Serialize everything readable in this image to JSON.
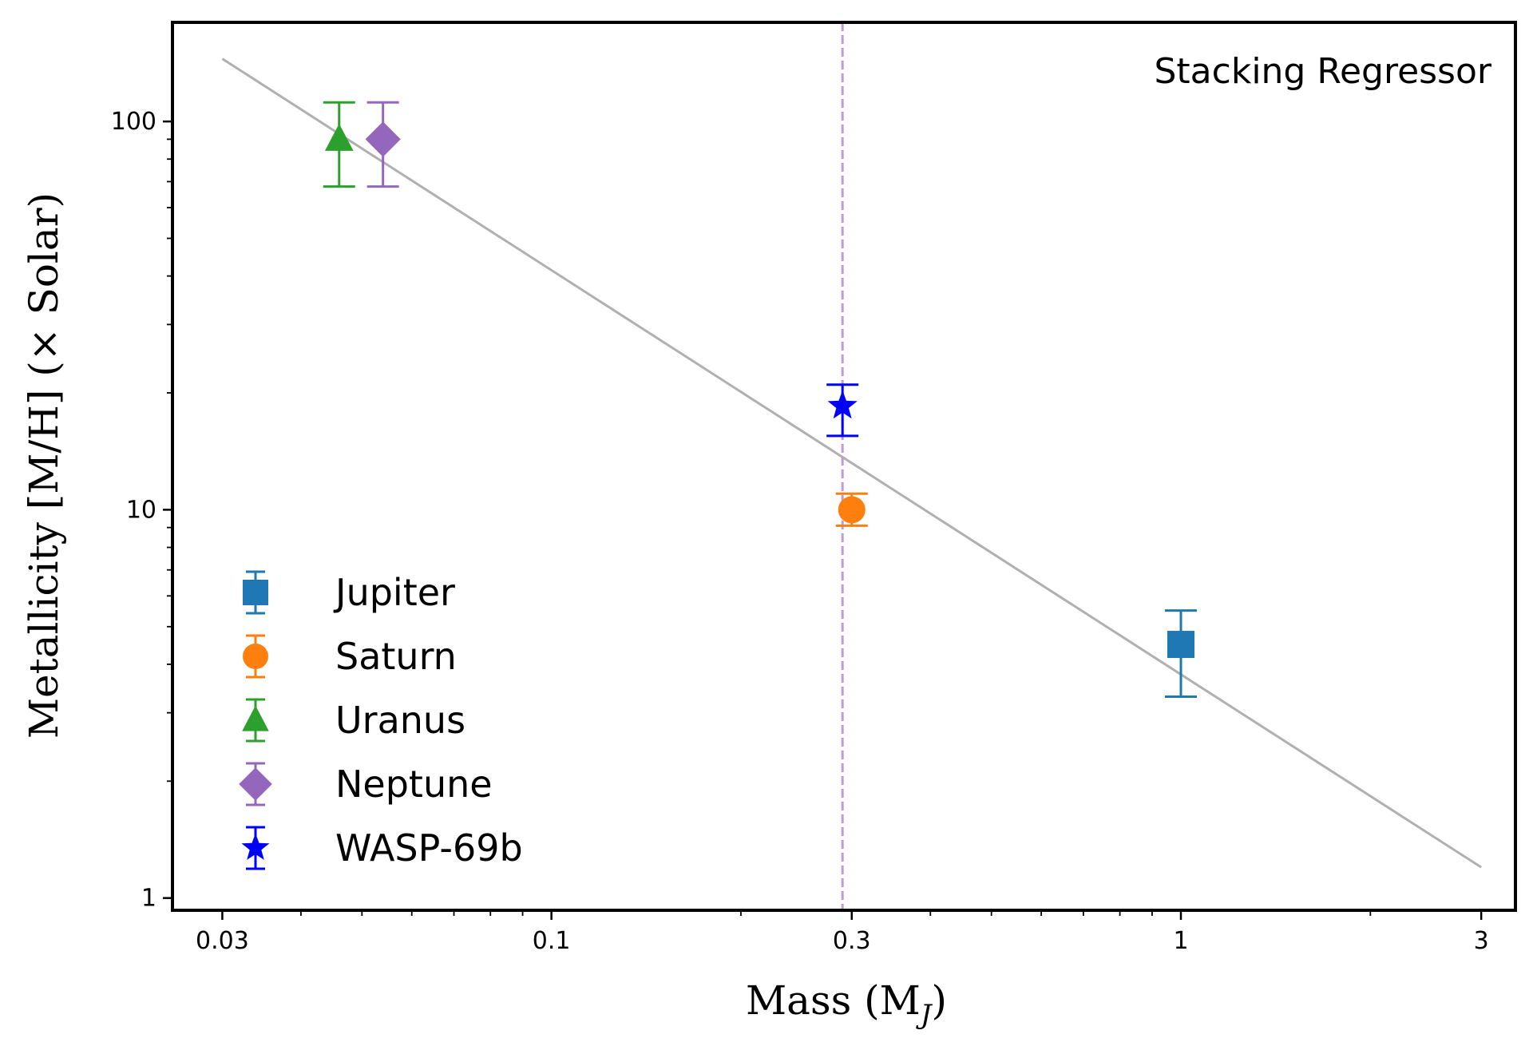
{
  "chart_data": {
    "type": "scatter",
    "xscale": "log",
    "yscale": "log",
    "xlim": [
      0.025,
      3.4
    ],
    "ylim": [
      0.93,
      180
    ],
    "xlabel": "Mass (M",
    "xlabel_sub": "J",
    "xlabel_close": ")",
    "ylabel": "Metallicity [M/H] (× Solar)",
    "annotation": "Stacking Regressor",
    "x_ticks": [
      {
        "value": 0.03,
        "label": "0.03"
      },
      {
        "value": 0.1,
        "label": "0.1"
      },
      {
        "value": 0.3,
        "label": "0.3"
      },
      {
        "value": 1,
        "label": "1"
      },
      {
        "value": 3,
        "label": "3"
      }
    ],
    "y_ticks": [
      {
        "value": 1,
        "label": "1"
      },
      {
        "value": 10,
        "label": "10"
      },
      {
        "value": 100,
        "label": "100"
      }
    ],
    "legend_position": "lower-left",
    "series": [
      {
        "name": "Jupiter",
        "x": 1.0,
        "y": 4.5,
        "yerr_low": 3.3,
        "yerr_high": 5.5,
        "marker": "square",
        "color": "#1f77b4"
      },
      {
        "name": "Saturn",
        "x": 0.3,
        "y": 10.0,
        "yerr_low": 9.1,
        "yerr_high": 11.0,
        "marker": "circle",
        "color": "#ff7f0e"
      },
      {
        "name": "Uranus",
        "x": 0.046,
        "y": 90,
        "yerr_low": 68,
        "yerr_high": 112,
        "marker": "triangle",
        "color": "#2ca02c"
      },
      {
        "name": "Neptune",
        "x": 0.054,
        "y": 90,
        "yerr_low": 68,
        "yerr_high": 112,
        "marker": "diamond",
        "color": "#9467bd"
      },
      {
        "name": "WASP-69b",
        "x": 0.29,
        "y": 18.5,
        "yerr_low": 15.5,
        "yerr_high": 21.0,
        "marker": "star",
        "color": "#0000ff"
      }
    ],
    "fit_line": {
      "x": [
        0.03,
        3.0
      ],
      "y": [
        145,
        1.2
      ],
      "color": "#b0b0b0"
    },
    "vertical_line": {
      "x": 0.29,
      "color": "#c39bd3",
      "style": "dashed"
    }
  }
}
